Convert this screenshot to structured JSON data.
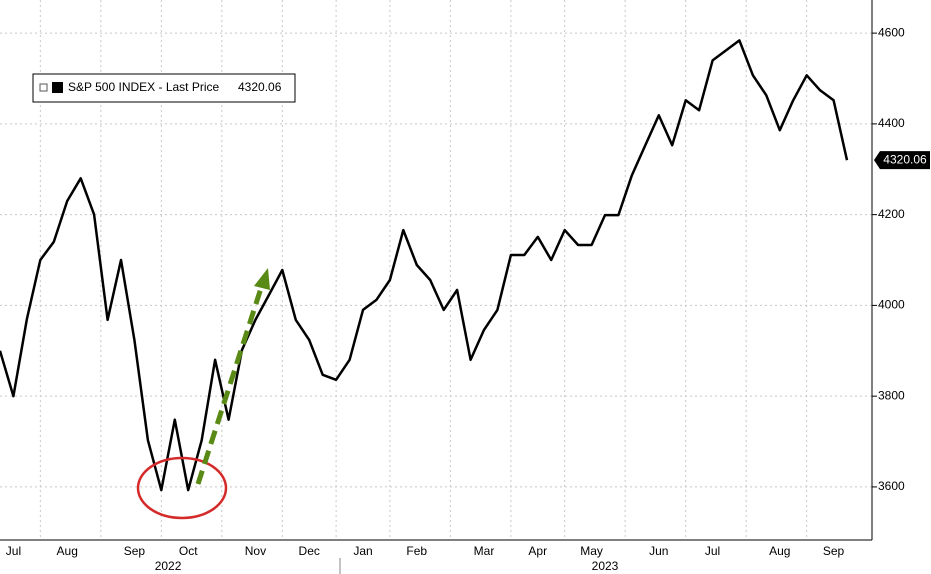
{
  "chart_data": {
    "type": "line",
    "series": [
      {
        "name": "S&P 500 INDEX - Last Price",
        "color": "#000000",
        "values": [
          3900,
          3800,
          3970,
          4100,
          4140,
          4230,
          4280,
          4200,
          3968,
          4100,
          3924,
          3703,
          3593,
          3748,
          3593,
          3703,
          3880,
          3748,
          3902,
          3968,
          4023,
          4078,
          3968,
          3924,
          3847,
          3836,
          3880,
          3990,
          4012,
          4056,
          4166,
          4089,
          4056,
          3990,
          4034,
          3880,
          3946,
          3990,
          4111,
          4111,
          4151,
          4100,
          4166,
          4133,
          4133,
          4199,
          4199,
          4287,
          4353,
          4419,
          4353,
          4452,
          4430,
          4540,
          4562,
          4584,
          4507,
          4463,
          4386,
          4452,
          4507,
          4474,
          4452,
          4320.06
        ]
      }
    ],
    "categories": [
      null,
      "Jul",
      null,
      null,
      null,
      "Aug",
      null,
      null,
      null,
      null,
      "Sep",
      null,
      null,
      null,
      "Oct",
      null,
      null,
      null,
      null,
      "Nov",
      null,
      null,
      null,
      "Dec",
      null,
      null,
      null,
      "Jan",
      null,
      null,
      null,
      "Feb",
      null,
      null,
      null,
      null,
      "Mar",
      null,
      null,
      null,
      "Apr",
      null,
      null,
      null,
      "May",
      null,
      null,
      null,
      null,
      "Jun",
      null,
      null,
      null,
      "Jul",
      null,
      null,
      null,
      null,
      "Aug",
      null,
      null,
      null,
      "Sep",
      null
    ],
    "years": [
      "2022",
      "2023"
    ],
    "ylim": [
      3483,
      4673
    ],
    "yticks": [
      3600,
      3800,
      4000,
      4200,
      4400,
      4600
    ],
    "grid": true
  }
}
